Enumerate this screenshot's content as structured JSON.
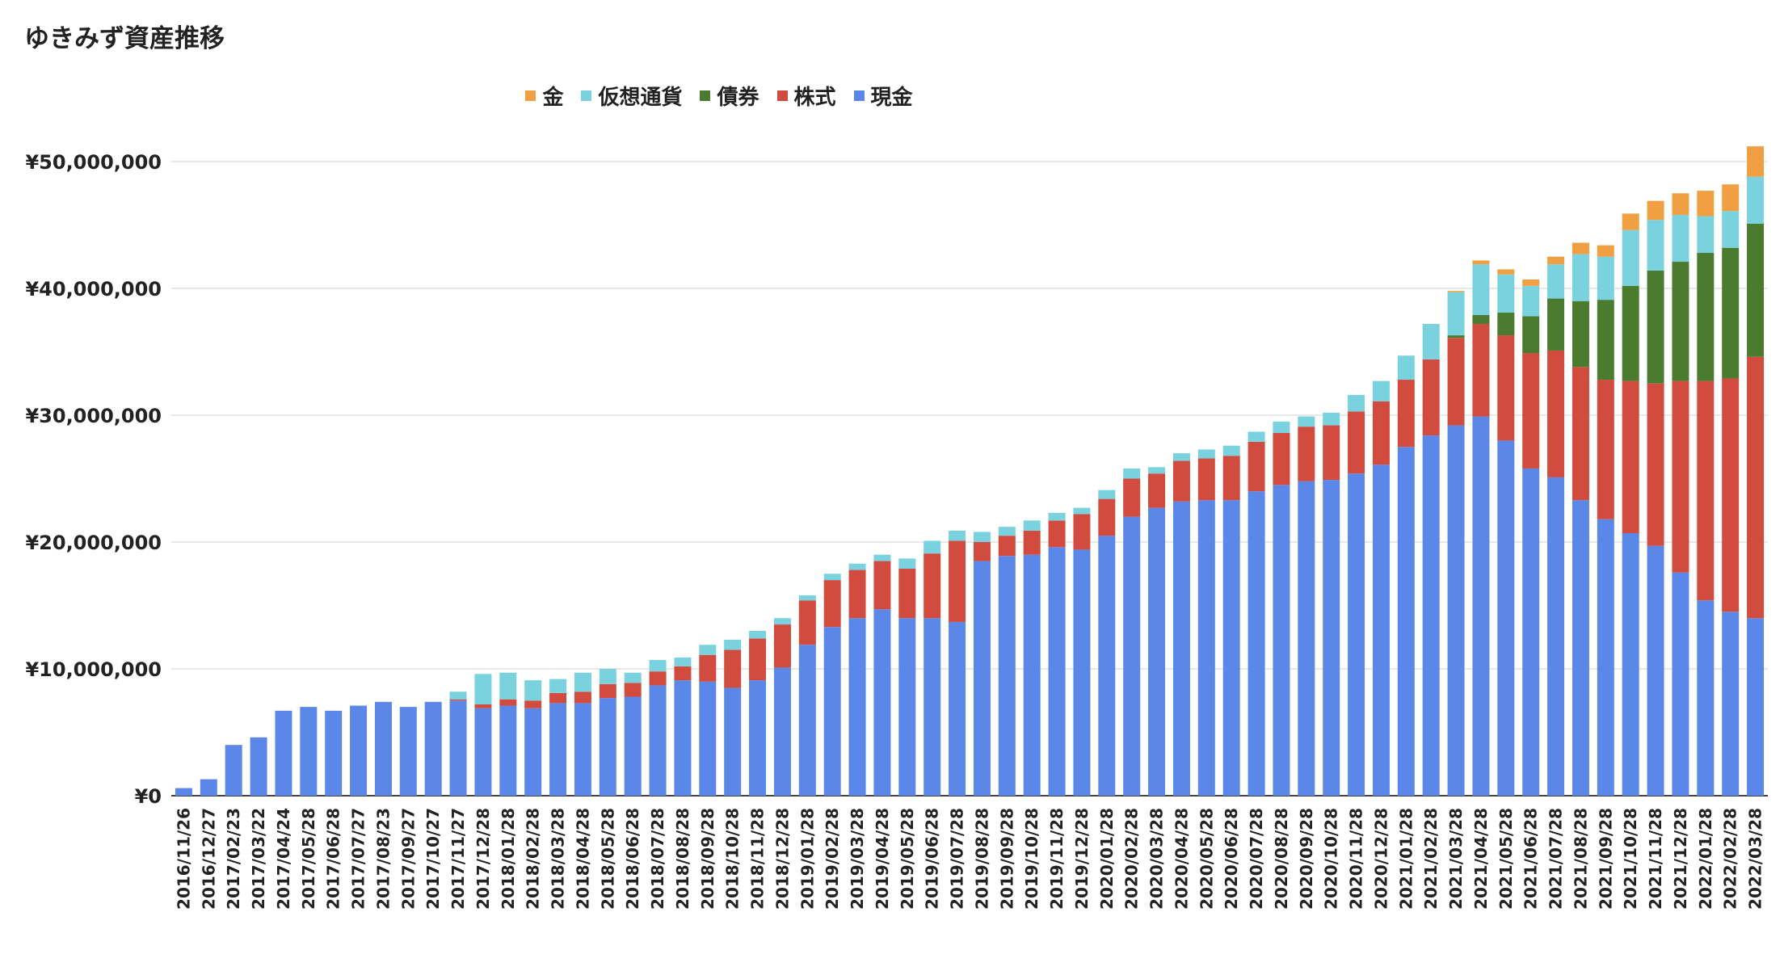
{
  "chart_data": {
    "type": "bar",
    "stacked": true,
    "title": "ゆきみず資産推移",
    "xlabel": "",
    "ylabel": "",
    "ylim": [
      0,
      50000000
    ],
    "grid": true,
    "legend_position": "top",
    "y_ticks": [
      "¥0",
      "¥10,000,000",
      "¥20,000,000",
      "¥30,000,000",
      "¥40,000,000",
      "¥50,000,000"
    ],
    "y_tick_values": [
      0,
      10000000,
      20000000,
      30000000,
      40000000,
      50000000
    ],
    "categories": [
      "2016/11/26",
      "2016/12/27",
      "2017/02/23",
      "2017/03/22",
      "2017/04/24",
      "2017/05/28",
      "2017/06/28",
      "2017/07/27",
      "2017/08/23",
      "2017/09/27",
      "2017/10/27",
      "2017/11/27",
      "2017/12/28",
      "2018/01/28",
      "2018/02/28",
      "2018/03/28",
      "2018/04/28",
      "2018/05/28",
      "2018/06/28",
      "2018/07/28",
      "2018/08/28",
      "2018/09/28",
      "2018/10/28",
      "2018/11/28",
      "2018/12/28",
      "2019/01/28",
      "2019/02/28",
      "2019/03/28",
      "2019/04/28",
      "2019/05/28",
      "2019/06/28",
      "2019/07/28",
      "2019/08/28",
      "2019/09/28",
      "2019/10/28",
      "2019/11/28",
      "2019/12/28",
      "2020/01/28",
      "2020/02/28",
      "2020/03/28",
      "2020/04/28",
      "2020/05/28",
      "2020/06/28",
      "2020/07/28",
      "2020/08/28",
      "2020/09/28",
      "2020/10/28",
      "2020/11/28",
      "2020/12/28",
      "2021/01/28",
      "2021/02/28",
      "2021/03/28",
      "2021/04/28",
      "2021/05/28",
      "2021/06/28",
      "2021/07/28",
      "2021/08/28",
      "2021/09/28",
      "2021/10/28",
      "2021/11/28",
      "2021/12/28",
      "2022/01/28",
      "2022/02/28",
      "2022/03/28"
    ],
    "series": [
      {
        "name": "現金",
        "color": "#5b87e8",
        "values": [
          600000,
          1300000,
          4000000,
          4600000,
          6700000,
          7000000,
          6700000,
          7100000,
          7400000,
          7000000,
          7400000,
          7500000,
          6900000,
          7100000,
          6900000,
          7300000,
          7300000,
          7700000,
          7800000,
          8700000,
          9100000,
          9000000,
          8500000,
          9100000,
          10100000,
          11900000,
          13300000,
          14000000,
          14700000,
          14000000,
          14000000,
          13700000,
          18500000,
          18900000,
          19000000,
          19600000,
          19400000,
          20500000,
          22000000,
          22700000,
          23200000,
          23300000,
          23300000,
          24000000,
          24500000,
          24800000,
          24900000,
          25400000,
          26100000,
          27500000,
          28400000,
          29200000,
          29900000,
          28000000,
          25800000,
          25100000,
          23300000,
          21800000,
          20700000,
          19700000,
          17600000,
          15400000,
          14500000,
          14000000
        ]
      },
      {
        "name": "株式",
        "color": "#d24b3f",
        "values": [
          0,
          0,
          0,
          0,
          0,
          0,
          0,
          0,
          0,
          0,
          0,
          100000,
          300000,
          500000,
          600000,
          800000,
          900000,
          1100000,
          1100000,
          1100000,
          1100000,
          2100000,
          3000000,
          3300000,
          3400000,
          3500000,
          3700000,
          3800000,
          3800000,
          3900000,
          5100000,
          6400000,
          1500000,
          1600000,
          1900000,
          2100000,
          2800000,
          2900000,
          3000000,
          2700000,
          3200000,
          3300000,
          3500000,
          3900000,
          4100000,
          4300000,
          4300000,
          4900000,
          5000000,
          5300000,
          6000000,
          6900000,
          7300000,
          8300000,
          9100000,
          10000000,
          10500000,
          11000000,
          12000000,
          12800000,
          15100000,
          17300000,
          18400000,
          20600000
        ]
      },
      {
        "name": "債券",
        "color": "#4a7b2f",
        "values": [
          0,
          0,
          0,
          0,
          0,
          0,
          0,
          0,
          0,
          0,
          0,
          0,
          0,
          0,
          0,
          0,
          0,
          0,
          0,
          0,
          0,
          0,
          0,
          0,
          0,
          0,
          0,
          0,
          0,
          0,
          0,
          0,
          0,
          0,
          0,
          0,
          0,
          0,
          0,
          0,
          0,
          0,
          0,
          0,
          0,
          0,
          0,
          0,
          0,
          0,
          0,
          200000,
          700000,
          1800000,
          2900000,
          4100000,
          5200000,
          6300000,
          7500000,
          8900000,
          9400000,
          10100000,
          10300000,
          10500000
        ]
      },
      {
        "name": "仮想通貨",
        "color": "#79d2de",
        "values": [
          0,
          0,
          0,
          0,
          0,
          0,
          0,
          0,
          0,
          0,
          0,
          600000,
          2400000,
          2100000,
          1600000,
          1100000,
          1500000,
          1200000,
          800000,
          900000,
          700000,
          800000,
          800000,
          600000,
          500000,
          400000,
          500000,
          500000,
          500000,
          800000,
          1000000,
          800000,
          800000,
          700000,
          800000,
          600000,
          500000,
          700000,
          800000,
          500000,
          600000,
          700000,
          800000,
          800000,
          900000,
          800000,
          1000000,
          1300000,
          1600000,
          1900000,
          2800000,
          3400000,
          4000000,
          3000000,
          2400000,
          2700000,
          3700000,
          3400000,
          4400000,
          4000000,
          3700000,
          2900000,
          2900000,
          3700000
        ]
      },
      {
        "name": "金",
        "color": "#f0a042",
        "values": [
          0,
          0,
          0,
          0,
          0,
          0,
          0,
          0,
          0,
          0,
          0,
          0,
          0,
          0,
          0,
          0,
          0,
          0,
          0,
          0,
          0,
          0,
          0,
          0,
          0,
          0,
          0,
          0,
          0,
          0,
          0,
          0,
          0,
          0,
          0,
          0,
          0,
          0,
          0,
          0,
          0,
          0,
          0,
          0,
          0,
          0,
          0,
          0,
          0,
          0,
          0,
          100000,
          300000,
          400000,
          500000,
          600000,
          900000,
          900000,
          1300000,
          1500000,
          1700000,
          2000000,
          2100000,
          2400000
        ]
      }
    ]
  }
}
